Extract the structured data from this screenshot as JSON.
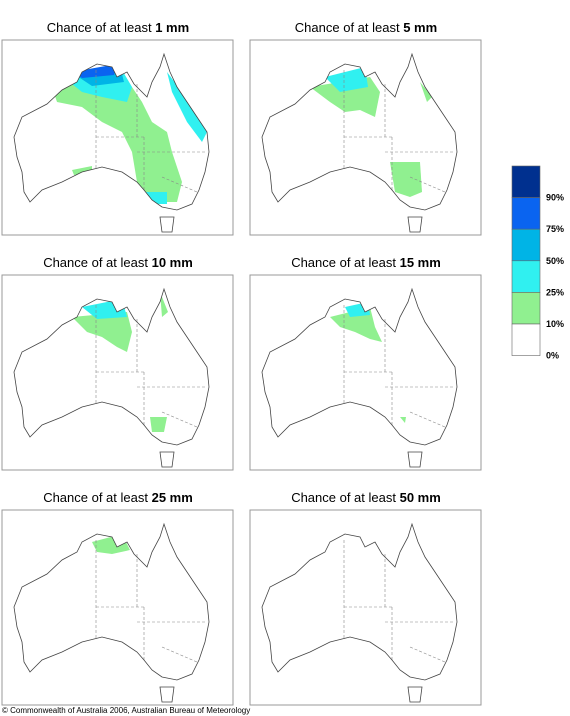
{
  "panels": [
    {
      "prefix": "Chance of at least",
      "amount": "1 mm"
    },
    {
      "prefix": "Chance of at least",
      "amount": "5 mm"
    },
    {
      "prefix": "Chance of at least",
      "amount": "10 mm"
    },
    {
      "prefix": "Chance of at least",
      "amount": "15 mm"
    },
    {
      "prefix": "Chance of at least",
      "amount": "25 mm"
    },
    {
      "prefix": "Chance of at least",
      "amount": "50 mm"
    }
  ],
  "legend": {
    "colors": [
      "#00308f",
      "#0a64f0",
      "#00b4e6",
      "#30f0f0",
      "#90f090",
      "#ffffff"
    ],
    "labels": [
      "90%",
      "75%",
      "50%",
      "25%",
      "10%",
      "0%"
    ]
  },
  "footer": "© Commonwealth of Australia 2006, Australian Bureau of Meteorology"
}
